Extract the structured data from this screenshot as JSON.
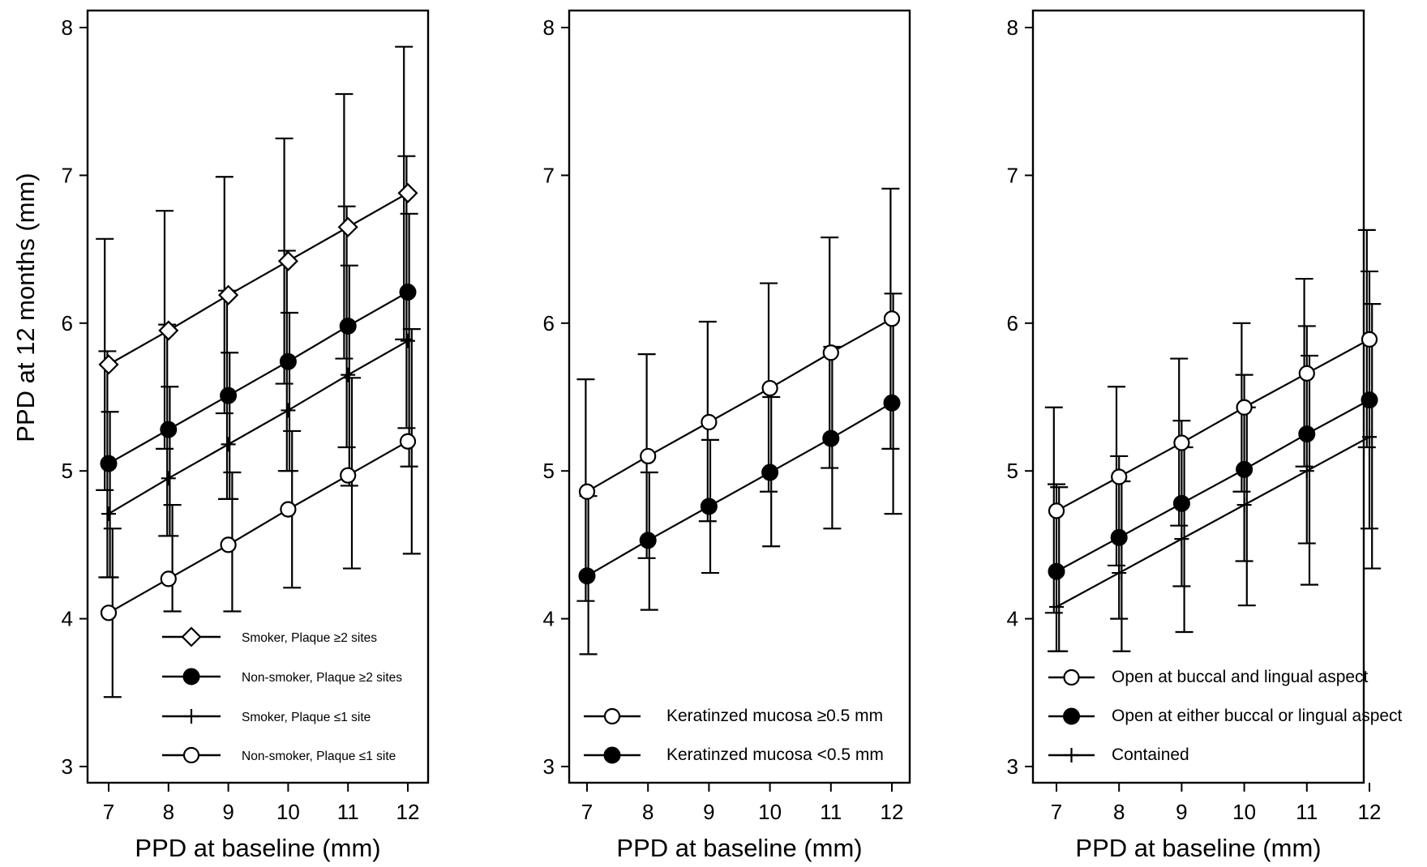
{
  "chart_data": [
    {
      "type": "line",
      "panel": "left",
      "title": "",
      "xlabel": "PPD at baseline (mm)",
      "ylabel": "PPD at 12 months (mm)",
      "x": [
        7,
        8,
        9,
        10,
        11,
        12
      ],
      "x_tick_labels": [
        "7",
        "8",
        "9",
        "10",
        "11",
        "12"
      ],
      "y_tick_labels": [
        "3",
        "4",
        "5",
        "6",
        "7",
        "8"
      ],
      "y_ticks": [
        3,
        4,
        5,
        6,
        7,
        8
      ],
      "xlim": [
        6.75,
        12.35
      ],
      "ylim": [
        2.9,
        8.1
      ],
      "grid": false,
      "legend_position": "bottom-right",
      "series": [
        {
          "name": "Smoker, Plaque ≥2 sites",
          "marker": "diamond-open",
          "values": [
            5.72,
            5.95,
            6.19,
            6.42,
            6.65,
            6.88
          ],
          "ci_lower": [
            4.87,
            5.15,
            5.39,
            5.59,
            5.76,
            5.89
          ],
          "ci_upper": [
            6.57,
            6.76,
            6.99,
            7.25,
            7.55,
            7.87
          ]
        },
        {
          "name": "Non-smoker, Plaque ≥2 sites",
          "marker": "circle-filled",
          "values": [
            5.05,
            5.28,
            5.51,
            5.74,
            5.98,
            6.21
          ],
          "ci_lower": [
            4.28,
            4.56,
            4.81,
            5.0,
            5.16,
            5.29
          ],
          "ci_upper": [
            5.81,
            5.99,
            6.22,
            6.49,
            6.79,
            7.13
          ]
        },
        {
          "name": "Smoker, Plaque ≤1 site",
          "marker": "plus",
          "values": [
            4.71,
            4.95,
            5.18,
            5.41,
            5.65,
            5.88
          ],
          "ci_lower": [
            4.28,
            4.56,
            4.81,
            5.0,
            4.9,
            5.03
          ],
          "ci_upper": [
            5.4,
            5.57,
            5.8,
            6.07,
            6.39,
            6.74
          ]
        },
        {
          "name": "Non-smoker, Plaque ≤1 site",
          "marker": "circle-open",
          "values": [
            4.04,
            4.27,
            4.5,
            4.74,
            4.97,
            5.2
          ],
          "ci_lower": [
            3.47,
            4.05,
            4.05,
            4.21,
            4.34,
            4.44
          ],
          "ci_upper": [
            4.61,
            4.77,
            4.99,
            5.27,
            5.63,
            5.96
          ]
        }
      ]
    },
    {
      "type": "line",
      "panel": "middle",
      "title": "",
      "xlabel": "PPD at baseline (mm)",
      "ylabel": "",
      "x": [
        7,
        8,
        9,
        10,
        11,
        12
      ],
      "x_tick_labels": [
        "7",
        "8",
        "9",
        "10",
        "11",
        "12"
      ],
      "y_tick_labels": [
        "3",
        "4",
        "5",
        "6",
        "7",
        "8"
      ],
      "y_ticks": [
        3,
        4,
        5,
        6,
        7,
        8
      ],
      "xlim": [
        6.7,
        12.3
      ],
      "ylim": [
        2.9,
        8.1
      ],
      "grid": false,
      "legend_position": "bottom-right",
      "series": [
        {
          "name": "Keratinzed mucosa ≥0.5 mm",
          "marker": "circle-open",
          "values": [
            4.86,
            5.1,
            5.33,
            5.56,
            5.8,
            6.03
          ],
          "ci_lower": [
            4.12,
            4.41,
            4.66,
            4.86,
            5.02,
            5.15
          ],
          "ci_upper": [
            5.62,
            5.79,
            6.01,
            6.27,
            6.58,
            6.91
          ]
        },
        {
          "name": "Keratinzed mucosa <0.5 mm",
          "marker": "circle-filled",
          "values": [
            4.29,
            4.53,
            4.76,
            4.99,
            5.22,
            5.46
          ],
          "ci_lower": [
            3.76,
            4.06,
            4.31,
            4.49,
            4.61,
            4.71
          ],
          "ci_upper": [
            4.83,
            4.99,
            5.21,
            5.5,
            5.84,
            6.2
          ]
        }
      ]
    },
    {
      "type": "line",
      "panel": "right",
      "title": "",
      "xlabel": "PPD at baseline (mm)",
      "ylabel": "",
      "x": [
        7,
        8,
        9,
        10,
        11,
        12
      ],
      "x_tick_labels": [
        "7",
        "8",
        "9",
        "10",
        "11",
        "12"
      ],
      "y_tick_labels": [
        "3",
        "4",
        "5",
        "6",
        "7",
        "8"
      ],
      "y_ticks": [
        3,
        4,
        5,
        6,
        7,
        8
      ],
      "xlim": [
        6.7,
        12.3
      ],
      "ylim": [
        2.9,
        8.1
      ],
      "grid": false,
      "legend_position": "bottom",
      "series": [
        {
          "name": "Open at buccal and lingual aspect",
          "marker": "circle-open",
          "values": [
            4.73,
            4.96,
            5.19,
            5.43,
            5.66,
            5.89
          ],
          "ci_lower": [
            4.04,
            4.36,
            4.63,
            4.86,
            5.03,
            5.16
          ],
          "ci_upper": [
            5.43,
            5.57,
            5.76,
            6.0,
            6.3,
            6.63
          ]
        },
        {
          "name": "Open at either buccal or lingual aspect",
          "marker": "circle-filled",
          "values": [
            4.32,
            4.55,
            4.78,
            5.01,
            5.25,
            5.48
          ],
          "ci_lower": [
            3.78,
            4.0,
            4.22,
            4.39,
            4.51,
            4.61
          ],
          "ci_upper": [
            4.91,
            5.1,
            5.34,
            5.65,
            5.98,
            6.35
          ]
        },
        {
          "name": "Contained",
          "marker": "plus",
          "values": [
            4.08,
            4.31,
            4.54,
            4.77,
            5.0,
            5.23
          ],
          "ci_lower": [
            3.78,
            3.78,
            3.91,
            4.09,
            4.23,
            4.34
          ],
          "ci_upper": [
            4.89,
            4.93,
            5.16,
            5.43,
            5.78,
            6.13
          ]
        }
      ]
    }
  ],
  "colors": {
    "ink": "#000000",
    "background": "#ffffff",
    "ci_fill": "#9a9a9a"
  }
}
